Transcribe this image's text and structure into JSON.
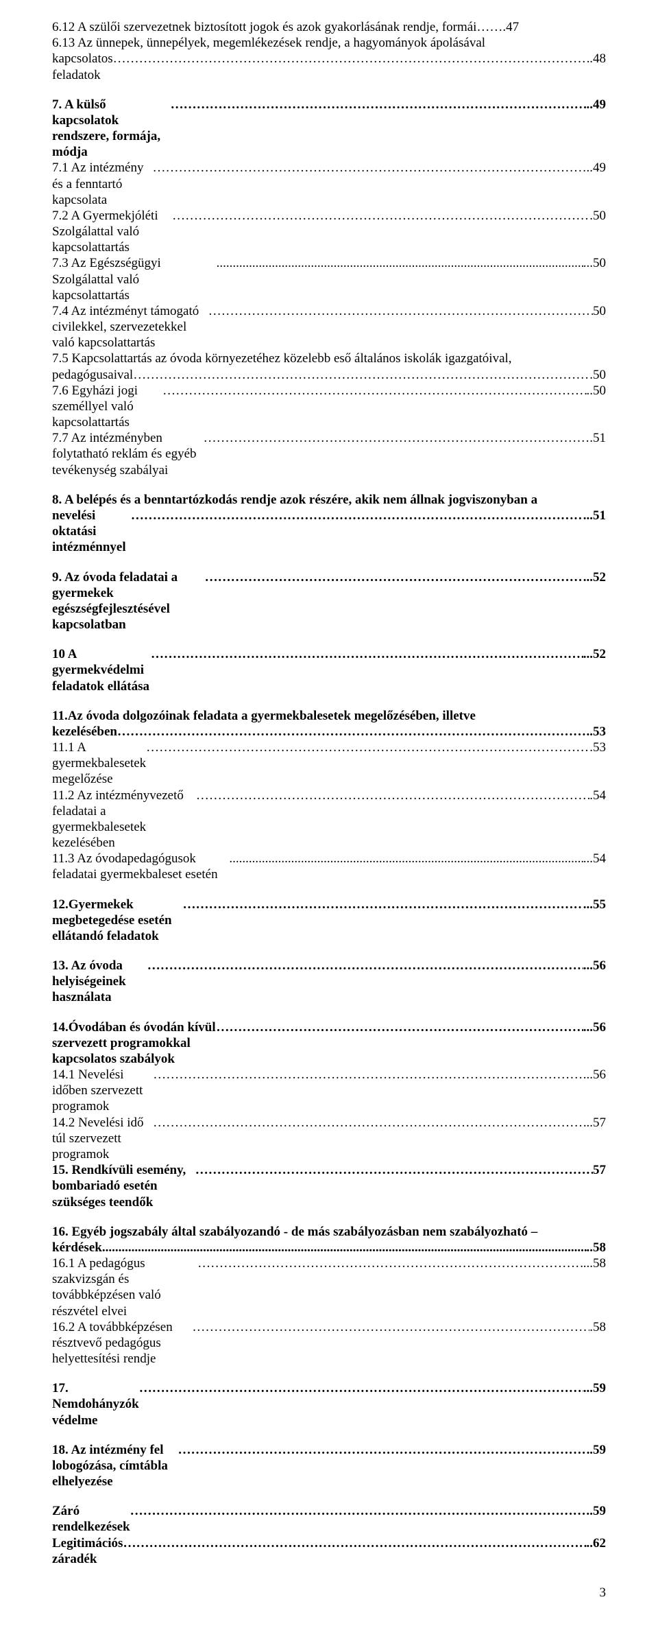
{
  "lines": [
    {
      "type": "wrap",
      "bold": false,
      "first": "6.12 A szülői szervezetnek biztosított jogok és azok gyakorlásának rendje, formái…….47",
      "second_label": "6.13 Az ünnepek, ünnepélyek, megemlékezések rendje, a hagyományok ápolásával",
      "second_page": ""
    },
    {
      "type": "line",
      "bold": false,
      "label": "kapcsolatos feladatok",
      "leader": "ell",
      "sep": ".",
      "page": "48"
    },
    {
      "type": "gap-med"
    },
    {
      "type": "line",
      "bold": true,
      "label": "7. A külső kapcsolatok rendszere, formája, módja",
      "leader": "ell",
      "sep": "..",
      "page": "49"
    },
    {
      "type": "line",
      "bold": false,
      "label": "7.1 Az intézmény és a fenntartó kapcsolata",
      "leader": "ell",
      "sep": "..",
      "page": "49"
    },
    {
      "type": "line",
      "bold": false,
      "label": "7.2 A Gyermekjóléti Szolgálattal való kapcsolattartás",
      "leader": "ell",
      "sep": ".",
      "page": "50"
    },
    {
      "type": "line",
      "bold": false,
      "label": "7.3 Az Egészségügyi Szolgálattal való kapcsolattartás",
      "leader": "dots",
      "sep": "...",
      "page": "50"
    },
    {
      "type": "line",
      "bold": false,
      "label": "7.4 Az intézményt támogató civilekkel, szervezetekkel való kapcsolattartás",
      "leader": "ell",
      "sep": "",
      "page": "50"
    },
    {
      "type": "wrap",
      "bold": false,
      "first": "7.5 Kapcsolattartás az óvoda környezetéhez közelebb eső általános iskolák igazgatóival,",
      "second_label": "pedagógusaival",
      "leader": "ell",
      "sep": ".",
      "page": "50"
    },
    {
      "type": "line",
      "bold": false,
      "label": "7.6 Egyházi jogi személlyel való kapcsolattartás",
      "leader": "ell",
      "sep": "..",
      "page": "50"
    },
    {
      "type": "line",
      "bold": false,
      "label": "7.7 Az intézményben folytatható reklám és egyéb tevékenység szabályai",
      "leader": "ell",
      "sep": ".",
      "page": "51"
    },
    {
      "type": "gap-med"
    },
    {
      "type": "wrap",
      "bold": true,
      "first": "8. A belépés és a benntartózkodás rendje azok részére, akik nem állnak jogviszonyban a",
      "second_label": "nevelési oktatási intézménnyel",
      "leader": "ell",
      "sep": "...",
      "page": "51"
    },
    {
      "type": "gap-med"
    },
    {
      "type": "line",
      "bold": true,
      "label": "9. Az óvoda feladatai a gyermekek egészségfejlesztésével kapcsolatban",
      "leader": "ell",
      "sep": "...",
      "page": "52"
    },
    {
      "type": "gap-med"
    },
    {
      "type": "line",
      "bold": true,
      "label": "10 A gyermekvédelmi feladatok ellátása",
      "leader": "ell",
      "sep": "...",
      "page": "52"
    },
    {
      "type": "gap-med"
    },
    {
      "type": "wrap",
      "bold": true,
      "first": "11.Az óvoda dolgozóinak feladata a gyermekbalesetek megelőzésében, illetve",
      "second_label": "kezelésében",
      "leader": "ell",
      "sep": "..",
      "page": "53"
    },
    {
      "type": "line",
      "bold": false,
      "label": "11.1 A gyermekbalesetek megelőzése",
      "leader": "ell",
      "sep": ".",
      "page": "53"
    },
    {
      "type": "line",
      "bold": false,
      "label": "11.2 Az intézményvezető feladatai a gyermekbalesetek kezelésében",
      "leader": "ell",
      "sep": ".",
      "page": "54"
    },
    {
      "type": "line",
      "bold": false,
      "label": "11.3 Az óvodapedagógusok feladatai gyermekbaleset esetén",
      "leader": "dots",
      "sep": "...",
      "page": "54"
    },
    {
      "type": "gap-med"
    },
    {
      "type": "line",
      "bold": true,
      "label": "12.Gyermekek megbetegedése esetén ellátandó feladatok",
      "leader": "ell",
      "sep": "...",
      "page": "55"
    },
    {
      "type": "gap-med"
    },
    {
      "type": "line",
      "bold": true,
      "label": "13. Az óvoda helyiségeinek használata",
      "leader": "ell",
      "sep": "...",
      "page": "56"
    },
    {
      "type": "gap-med"
    },
    {
      "type": "line",
      "bold": true,
      "label": "14.Óvodában és óvodán kívül szervezett programokkal kapcsolatos szabályok",
      "leader": "ell",
      "sep": "...",
      "page": "56"
    },
    {
      "type": "line",
      "bold": false,
      "label": "14.1 Nevelési időben szervezett programok",
      "leader": "ell",
      "sep": "...",
      "page": "56"
    },
    {
      "type": "line",
      "bold": false,
      "label": "14.2 Nevelési idő túl szervezett programok",
      "leader": "ell",
      "sep": "..",
      "page": "57"
    },
    {
      "type": "line",
      "bold": true,
      "label": "15. Rendkívüli esemény, bombariadó esetén szükséges teendők",
      "leader": "ell",
      "sep": "",
      "page": "57"
    },
    {
      "type": "gap-med"
    },
    {
      "type": "wrap",
      "bold": true,
      "first": "16. Egyéb jogszabály által szabályozandó - de más szabályozásban nem szabályozható –",
      "second_label": "kérdések",
      "leader": "dots",
      "sep": "..",
      "page": "58"
    },
    {
      "type": "line",
      "bold": false,
      "label": "16.1 A pedagógus szakvizsgán és továbbképzésen való részvétel elvei",
      "leader": "ell",
      "sep": "...",
      "page": "58"
    },
    {
      "type": "line",
      "bold": false,
      "label": "16.2 A továbbképzésen résztvevő pedagógus helyettesítési rendje",
      "leader": "ell",
      "sep": ".",
      "page": "58"
    },
    {
      "type": "gap-med"
    },
    {
      "type": "line",
      "bold": true,
      "label": "17. Nemdohányzók védelme",
      "leader": "ell",
      "sep": "...",
      "page": "59"
    },
    {
      "type": "gap-med"
    },
    {
      "type": "line",
      "bold": true,
      "label": "18. Az intézmény fel lobogózása, címtábla elhelyezése",
      "leader": "ell",
      "sep": ".",
      "page": "59"
    },
    {
      "type": "gap-med"
    },
    {
      "type": "line",
      "bold": true,
      "label": "Záró rendelkezések",
      "leader": "ell",
      "sep": ".",
      "page": "59"
    },
    {
      "type": "line",
      "bold": true,
      "label": "Legitimációs záradék",
      "leader": "ell",
      "sep": "..",
      "page": "62"
    }
  ],
  "pageNumber": "3",
  "colors": {
    "text": "#000000",
    "background": "#ffffff"
  },
  "fonts": {
    "family": "Times New Roman",
    "size_pt": 14
  }
}
